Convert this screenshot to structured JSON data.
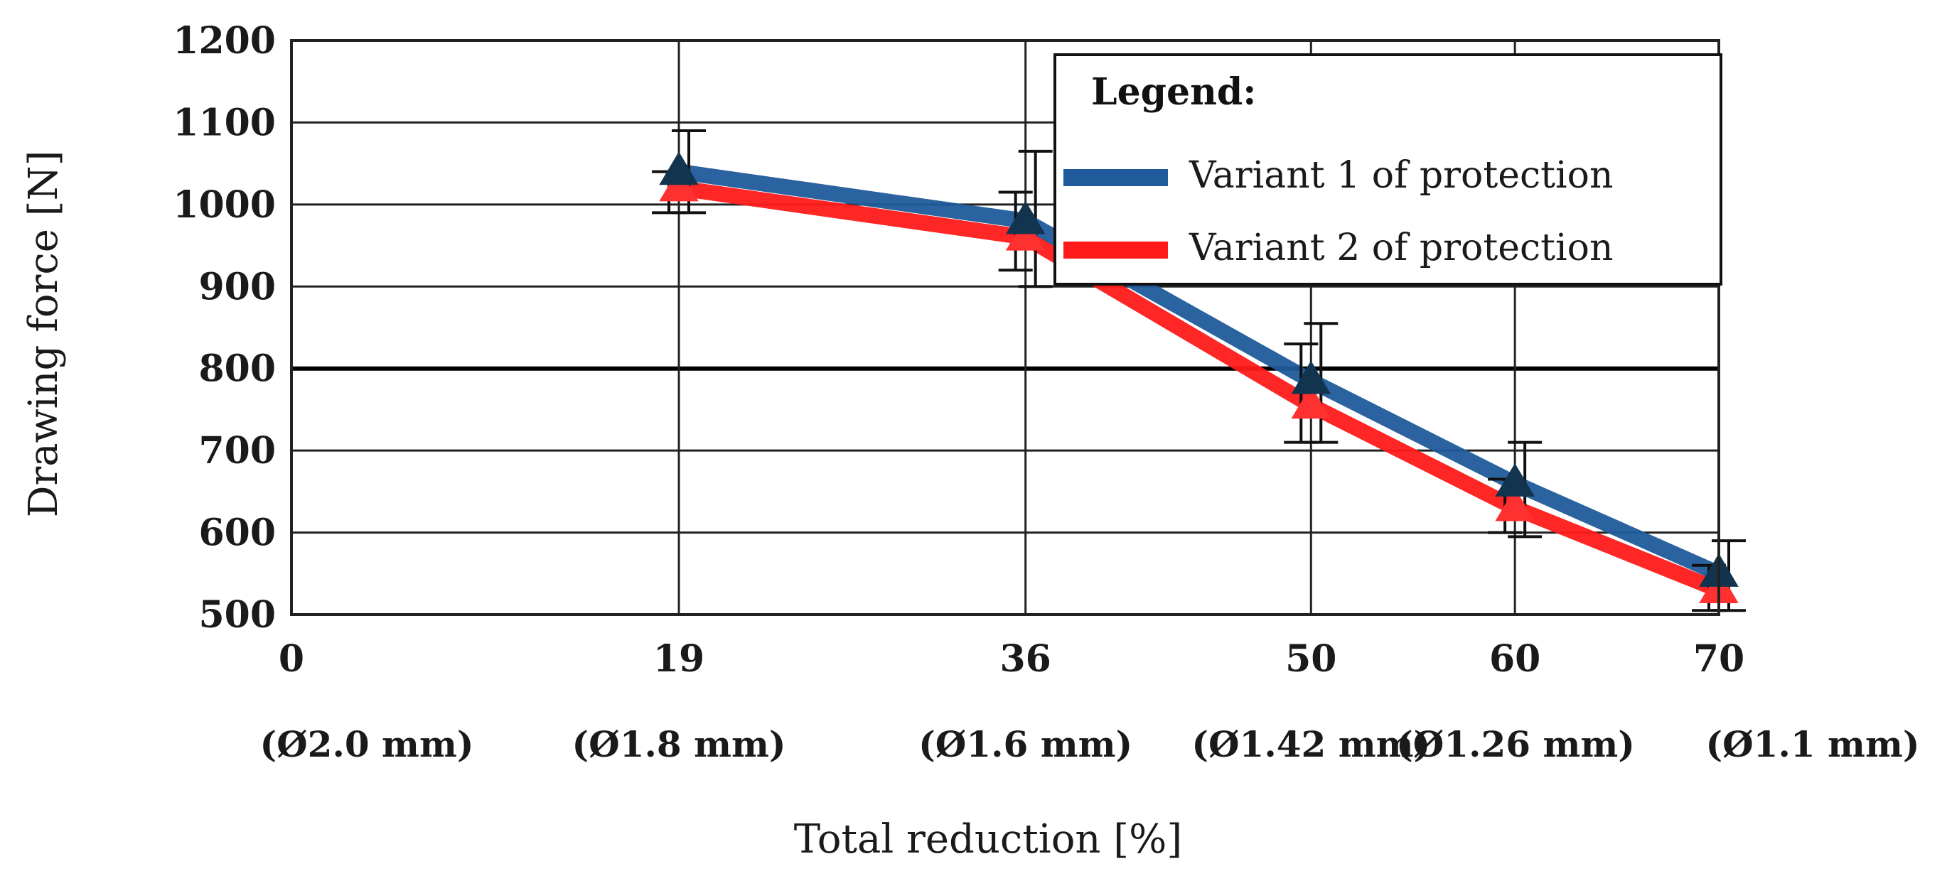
{
  "chart_data": {
    "type": "line",
    "title": "",
    "xlabel": "Total reduction [%]",
    "ylabel": "Drawing force [N]",
    "ylim": [
      500,
      1200
    ],
    "yticks": [
      "500",
      "600",
      "700",
      "800",
      "900",
      "1000",
      "1100",
      "1200"
    ],
    "x_categories": [
      {
        "value": 0,
        "label": "0",
        "diameter": "(Ø2.0 mm)"
      },
      {
        "value": 19,
        "label": "19",
        "diameter": "(Ø1.8 mm)"
      },
      {
        "value": 36,
        "label": "36",
        "diameter": "(Ø1.6 mm)"
      },
      {
        "value": 50,
        "label": "50",
        "diameter": "(Ø1.42 mm)"
      },
      {
        "value": 60,
        "label": "60",
        "diameter": "(Ø1.26 mm)"
      },
      {
        "value": 70,
        "label": "70",
        "diameter": "(Ø1.1 mm)"
      }
    ],
    "grid": true,
    "legend": {
      "title": "Legend:",
      "placement": "top-right"
    },
    "series": [
      {
        "name": "Variant 1 of protection",
        "color": "#1f5b9a",
        "marker": "triangle",
        "x": [
          19,
          36,
          50,
          60,
          70
        ],
        "values": [
          1040,
          980,
          785,
          660,
          550
        ],
        "error_low": [
          990,
          900,
          710,
          595,
          505
        ],
        "error_high": [
          1090,
          1065,
          855,
          710,
          590
        ]
      },
      {
        "name": "Variant 2 of protection",
        "color": "#ff1a1a",
        "marker": "triangle",
        "x": [
          19,
          36,
          50,
          60,
          70
        ],
        "values": [
          1020,
          960,
          755,
          630,
          530
        ],
        "error_low": [
          990,
          920,
          710,
          600,
          505
        ],
        "error_high": [
          1040,
          1015,
          830,
          665,
          560
        ]
      }
    ]
  }
}
